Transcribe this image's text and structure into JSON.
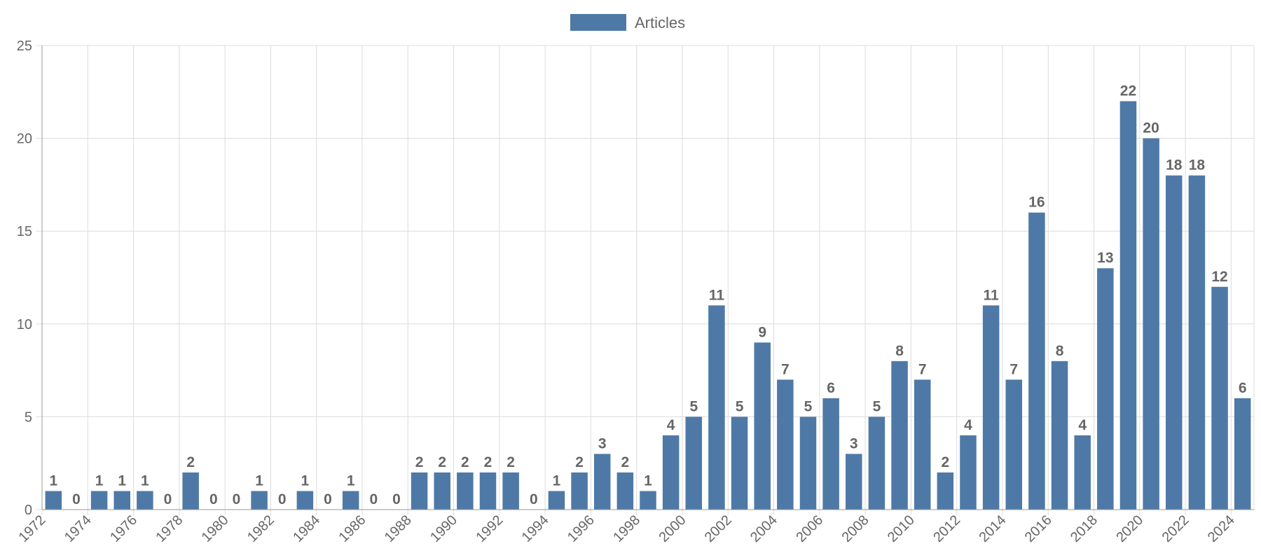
{
  "chart_data": {
    "type": "bar",
    "legend": {
      "position": "top",
      "entries": [
        "Articles"
      ]
    },
    "categories": [
      "1972",
      "1973",
      "1974",
      "1975",
      "1976",
      "1977",
      "1978",
      "1979",
      "1980",
      "1981",
      "1982",
      "1983",
      "1984",
      "1985",
      "1986",
      "1987",
      "1988",
      "1989",
      "1990",
      "1991",
      "1992",
      "1993",
      "1994",
      "1995",
      "1996",
      "1997",
      "1998",
      "1999",
      "2000",
      "2001",
      "2002",
      "2003",
      "2004",
      "2005",
      "2006",
      "2007",
      "2008",
      "2009",
      "2010",
      "2011",
      "2012",
      "2013",
      "2014",
      "2015",
      "2016",
      "2017",
      "2018",
      "2019",
      "2020",
      "2021",
      "2022",
      "2023",
      "2024"
    ],
    "x_tick_labels": [
      "1972",
      "1974",
      "1976",
      "1978",
      "1980",
      "1982",
      "1984",
      "1986",
      "1988",
      "1990",
      "1992",
      "1994",
      "1996",
      "1998",
      "2000",
      "2002",
      "2004",
      "2006",
      "2008",
      "2010",
      "2012",
      "2014",
      "2016",
      "2018",
      "2020",
      "2022",
      "2024"
    ],
    "series": [
      {
        "name": "Articles",
        "color": "#4e79a7",
        "values": [
          1,
          0,
          1,
          1,
          1,
          0,
          2,
          0,
          0,
          1,
          0,
          1,
          0,
          1,
          0,
          0,
          2,
          2,
          2,
          2,
          2,
          0,
          1,
          2,
          3,
          2,
          1,
          4,
          5,
          11,
          5,
          9,
          7,
          5,
          6,
          3,
          5,
          8,
          7,
          2,
          4,
          11,
          7,
          16,
          8,
          4,
          13,
          22,
          20,
          18,
          18,
          12,
          6
        ]
      }
    ],
    "y_ticks": [
      "0",
      "5",
      "10",
      "15",
      "20",
      "25"
    ],
    "ylim": [
      0,
      25
    ],
    "grid": true,
    "data_labels": true
  }
}
